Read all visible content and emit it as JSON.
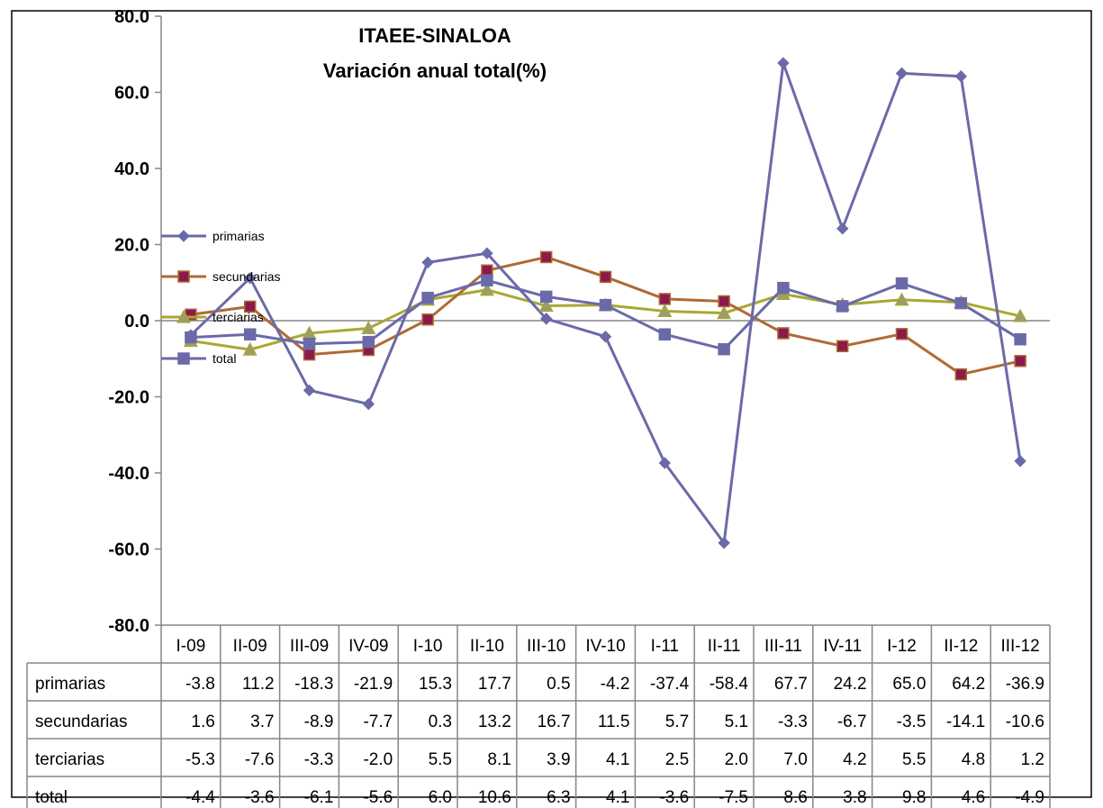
{
  "chart_data": {
    "type": "line",
    "title": "ITAEE-SINALOA",
    "subtitle": "Variación anual total(%)",
    "categories": [
      "I-09",
      "II-09",
      "III-09",
      "IV-09",
      "I-10",
      "II-10",
      "III-10",
      "IV-10",
      "I-11",
      "II-11",
      "III-11",
      "IV-11",
      "I-12",
      "II-12",
      "III-12"
    ],
    "ylim": [
      -80,
      80
    ],
    "yticks": [
      "80.0",
      "60.0",
      "40.0",
      "20.0",
      "0.0",
      "-20.0",
      "-40.0",
      "-60.0",
      "-80.0"
    ],
    "ytick_values": [
      80,
      60,
      40,
      20,
      0,
      -20,
      -40,
      -60,
      -80
    ],
    "legend_position": "left",
    "series": [
      {
        "name": "primarias",
        "marker": "diamond",
        "color": "#6b6aa8",
        "marker_fill": "#6b6aa8",
        "values": [
          -3.8,
          11.2,
          -18.3,
          -21.9,
          15.3,
          17.7,
          0.5,
          -4.2,
          -37.4,
          -58.4,
          67.7,
          24.2,
          65.0,
          64.2,
          -36.9
        ],
        "labels": [
          "-3.8",
          "11.2",
          "-18.3",
          "-21.9",
          "15.3",
          "17.7",
          "0.5",
          "-4.2",
          "-37.4",
          "-58.4",
          "67.7",
          "24.2",
          "65.0",
          "64.2",
          "-36.9"
        ]
      },
      {
        "name": "secundarias",
        "marker": "square",
        "color": "#b06a35",
        "marker_fill": "#8b1a4a",
        "values": [
          1.6,
          3.7,
          -8.9,
          -7.7,
          0.3,
          13.2,
          16.7,
          11.5,
          5.7,
          5.1,
          -3.3,
          -6.7,
          -3.5,
          -14.1,
          -10.6
        ],
        "labels": [
          "1.6",
          "3.7",
          "-8.9",
          "-7.7",
          "0.3",
          "13.2",
          "16.7",
          "11.5",
          "5.7",
          "5.1",
          "-3.3",
          "-6.7",
          "-3.5",
          "-14.1",
          "-10.6"
        ]
      },
      {
        "name": "terciarias",
        "marker": "triangle",
        "color": "#a8a832",
        "marker_fill": "#9c9c6c",
        "values": [
          -5.3,
          -7.6,
          -3.3,
          -2.0,
          5.5,
          8.1,
          3.9,
          4.1,
          2.5,
          2.0,
          7.0,
          4.2,
          5.5,
          4.8,
          1.2
        ],
        "labels": [
          "-5.3",
          "-7.6",
          "-3.3",
          "-2.0",
          "5.5",
          "8.1",
          "3.9",
          "4.1",
          "2.5",
          "2.0",
          "7.0",
          "4.2",
          "5.5",
          "4.8",
          "1.2"
        ]
      },
      {
        "name": "total",
        "marker": "square",
        "color": "#6b6aa8",
        "marker_fill": "#6b6aa8",
        "values": [
          -4.4,
          -3.6,
          -6.1,
          -5.6,
          6.0,
          10.6,
          6.3,
          4.1,
          -3.6,
          -7.5,
          8.6,
          3.8,
          9.8,
          4.6,
          -4.9
        ],
        "labels": [
          "-4.4",
          "-3.6",
          "-6.1",
          "-5.6",
          "6.0",
          "10.6",
          "6.3",
          "4.1",
          "-3.6",
          "-7.5",
          "8.6",
          "3.8",
          "9.8",
          "4.6",
          "-4.9"
        ]
      }
    ]
  }
}
